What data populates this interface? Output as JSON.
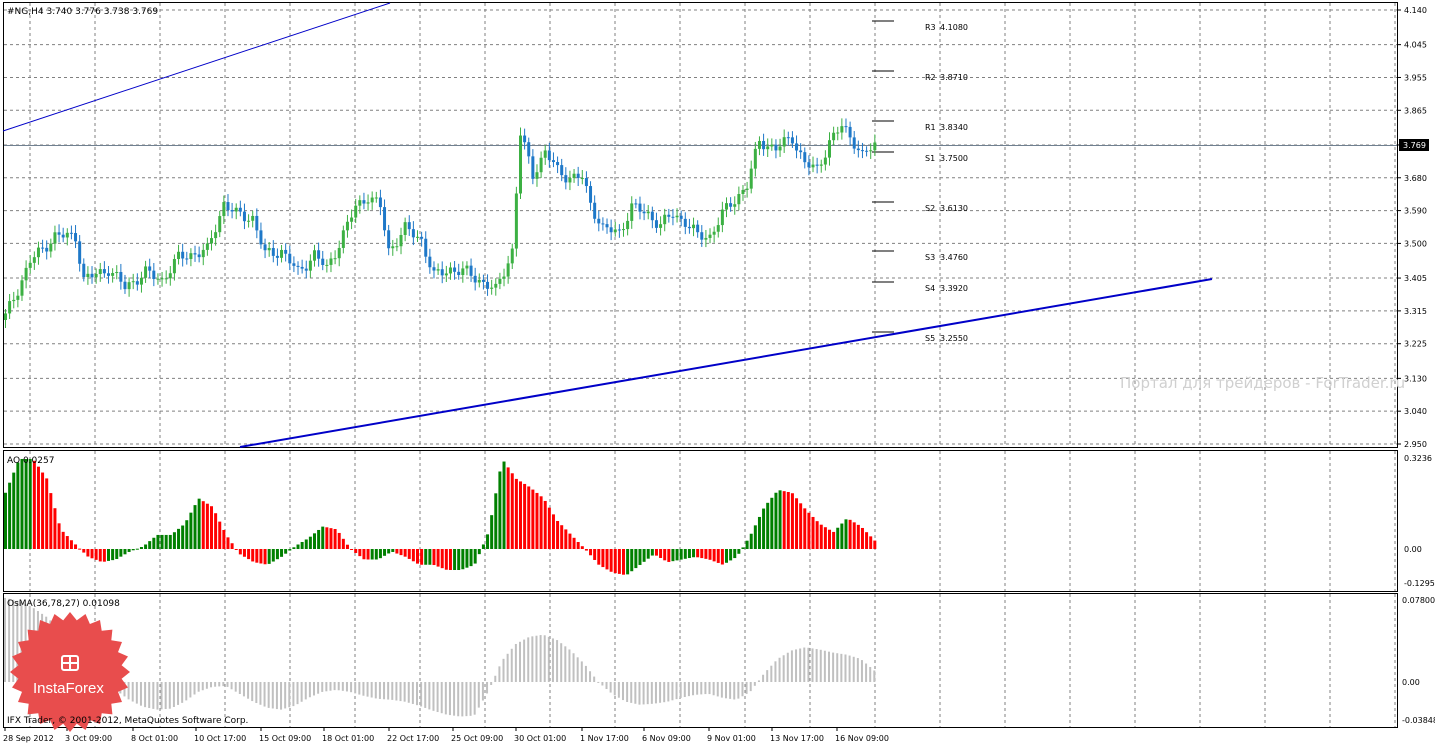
{
  "header": {
    "symbol_line": "#NG,H4  3.740 3.776 3.738 3.769"
  },
  "price_current": "3.769",
  "pivots": [
    {
      "label": "R3",
      "value_text": "4.1080",
      "value": 4.108
    },
    {
      "label": "R2",
      "value_text": "3.8710",
      "value": 3.871
    },
    {
      "label": "R1",
      "value_text": "3.8340",
      "value": 3.834
    },
    {
      "label": "S1",
      "value_text": "3.7500",
      "value": 3.75
    },
    {
      "label": "S2",
      "value_text": "3.6130",
      "value": 3.613
    },
    {
      "label": "S3",
      "value_text": "3.4760",
      "value": 3.476
    },
    {
      "label": "S4",
      "value_text": "3.3920",
      "value": 3.392
    },
    {
      "label": "S5",
      "value_text": "3.2550",
      "value": 3.255
    }
  ],
  "watermark": "Портал для трейдеров - ForTrader.ru",
  "copyright": "IFX Trader, © 2001-2012, MetaQuotes Software Corp.",
  "logo_text": "InstaForex",
  "ao": {
    "label": "AO 0.0257",
    "ticks": [
      "0.3236",
      "0.00",
      "-0.1295"
    ]
  },
  "osma": {
    "label": "OsMA(36,78,27) 0.01098",
    "ticks": [
      "0.07800",
      "0.00",
      "-0.03848"
    ]
  },
  "price_ticks": [
    "4.140",
    "4.045",
    "3.955",
    "3.865",
    "3.770",
    "3.680",
    "3.590",
    "3.500",
    "3.405",
    "3.315",
    "3.225",
    "3.130",
    "3.040",
    "2.950"
  ],
  "time_labels": [
    "28 Sep 2012",
    "3 Oct 09:00",
    "8 Oct 01:00",
    "10 Oct 17:00",
    "15 Oct 09:00",
    "18 Oct 01:00",
    "22 Oct 17:00",
    "25 Oct 09:00",
    "30 Oct 01:00",
    "1 Nov 17:00",
    "6 Nov 09:00",
    "9 Nov 01:00",
    "13 Nov 17:00",
    "16 Nov 09:00"
  ],
  "colors": {
    "bull": "#3cb043",
    "bear": "#1e78c8",
    "ao_up": "#008000",
    "ao_down": "#ff0000",
    "osma": "#c0c0c0",
    "trend": "#0000c8",
    "grid": "#808080",
    "logo": "#e84d4d"
  },
  "chart_data": [
    {
      "type": "candlestick",
      "title": "#NG,H4",
      "ylim": [
        2.95,
        4.14
      ],
      "close_path": [
        [
          0,
          3.3
        ],
        [
          6,
          3.45
        ],
        [
          12,
          3.52
        ],
        [
          17,
          3.52
        ],
        [
          19,
          3.4
        ],
        [
          25,
          3.43
        ],
        [
          29,
          3.38
        ],
        [
          34,
          3.42
        ],
        [
          38,
          3.4
        ],
        [
          42,
          3.46
        ],
        [
          45,
          3.47
        ],
        [
          49,
          3.48
        ],
        [
          53,
          3.61
        ],
        [
          56,
          3.58
        ],
        [
          60,
          3.57
        ],
        [
          63,
          3.47
        ],
        [
          67,
          3.48
        ],
        [
          71,
          3.42
        ],
        [
          75,
          3.47
        ],
        [
          78,
          3.43
        ],
        [
          81,
          3.5
        ],
        [
          85,
          3.6
        ],
        [
          88,
          3.63
        ],
        [
          91,
          3.6
        ],
        [
          93,
          3.48
        ],
        [
          97,
          3.54
        ],
        [
          101,
          3.51
        ],
        [
          104,
          3.41
        ],
        [
          108,
          3.43
        ],
        [
          112,
          3.42
        ],
        [
          115,
          3.4
        ],
        [
          119,
          3.37
        ],
        [
          123,
          3.48
        ],
        [
          125,
          3.8
        ],
        [
          128,
          3.69
        ],
        [
          131,
          3.75
        ],
        [
          134,
          3.7
        ],
        [
          137,
          3.68
        ],
        [
          140,
          3.68
        ],
        [
          142,
          3.61
        ],
        [
          145,
          3.54
        ],
        [
          149,
          3.53
        ],
        [
          152,
          3.6
        ],
        [
          156,
          3.58
        ],
        [
          159,
          3.55
        ],
        [
          162,
          3.58
        ],
        [
          165,
          3.56
        ],
        [
          168,
          3.52
        ],
        [
          171,
          3.52
        ],
        [
          174,
          3.58
        ],
        [
          177,
          3.62
        ],
        [
          180,
          3.66
        ],
        [
          183,
          3.78
        ],
        [
          187,
          3.76
        ],
        [
          191,
          3.79
        ],
        [
          194,
          3.72
        ],
        [
          197,
          3.7
        ],
        [
          200,
          3.78
        ],
        [
          203,
          3.82
        ],
        [
          206,
          3.78
        ],
        [
          208,
          3.74
        ],
        [
          211,
          3.769
        ]
      ]
    },
    {
      "type": "bar",
      "title": "AO",
      "ylim": [
        -0.1295,
        0.3236
      ],
      "values": [
        0.2,
        0.32,
        0.32,
        0.25,
        0.07,
        0.02,
        -0.03,
        -0.05,
        -0.04,
        -0.01,
        0.01,
        0.05,
        0.05,
        0.09,
        0.18,
        0.15,
        0.05,
        -0.02,
        -0.05,
        -0.06,
        -0.03,
        0.01,
        0.04,
        0.08,
        0.07,
        0.0,
        -0.04,
        -0.04,
        -0.01,
        -0.03,
        -0.06,
        -0.06,
        -0.08,
        -0.08,
        -0.06,
        0.06,
        0.32,
        0.25,
        0.22,
        0.18,
        0.1,
        0.05,
        0.0,
        -0.06,
        -0.09,
        -0.1,
        -0.06,
        -0.02,
        -0.05,
        -0.04,
        -0.03,
        -0.04,
        -0.06,
        -0.03,
        0.05,
        0.15,
        0.21,
        0.2,
        0.14,
        0.09,
        0.06,
        0.11,
        0.08,
        0.03
      ]
    },
    {
      "type": "bar",
      "title": "OsMA(36,78,27)",
      "ylim": [
        -0.03848,
        0.078
      ],
      "values": [
        0.08,
        0.077,
        0.071,
        0.062,
        0.05,
        0.035,
        0.02,
        0.005,
        -0.008,
        -0.018,
        -0.025,
        -0.028,
        -0.027,
        -0.02,
        -0.01,
        -0.005,
        -0.004,
        -0.012,
        -0.02,
        -0.026,
        -0.028,
        -0.024,
        -0.016,
        -0.01,
        -0.008,
        -0.01,
        -0.014,
        -0.017,
        -0.018,
        -0.02,
        -0.024,
        -0.029,
        -0.033,
        -0.035,
        -0.034,
        -0.01,
        0.02,
        0.036,
        0.043,
        0.045,
        0.04,
        0.03,
        0.017,
        0.0,
        -0.012,
        -0.02,
        -0.023,
        -0.022,
        -0.02,
        -0.016,
        -0.013,
        -0.012,
        -0.016,
        -0.018,
        -0.01,
        0.008,
        0.022,
        0.03,
        0.033,
        0.031,
        0.028,
        0.026,
        0.022,
        0.011
      ]
    }
  ]
}
